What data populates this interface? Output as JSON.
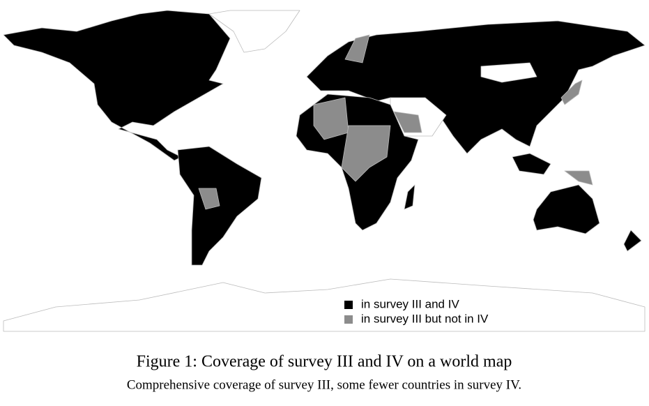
{
  "legend": [
    {
      "label": "in survey III and IV",
      "color": "#000000"
    },
    {
      "label": "in survey III but not in IV",
      "color": "#8c8c8c"
    }
  ],
  "caption": {
    "title": "Figure 1: Coverage of survey III and IV on a world map",
    "subtitle": "Comprehensive coverage of survey III, some fewer countries in survey IV."
  }
}
